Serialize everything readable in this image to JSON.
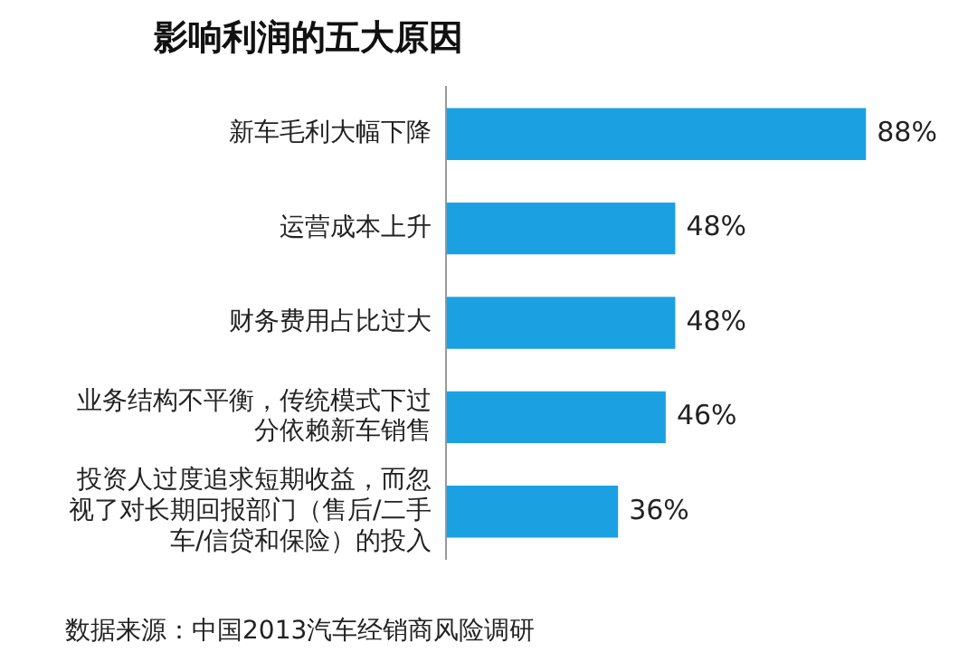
{
  "chart_data": {
    "type": "bar",
    "orientation": "horizontal",
    "title": "影响利润的五大原因",
    "categories": [
      "新车毛利大幅下降",
      "运营成本上升",
      "财务费用占比过大",
      "业务结构不平衡，传统模式下过分依赖新车销售",
      "投资人过度追求短期收益，而忽视了对长期回报部门（售后/二手车/信贷和保险）的投入"
    ],
    "values": [
      88,
      48,
      48,
      46,
      36
    ],
    "value_labels": [
      "88%",
      "48%",
      "48%",
      "46%",
      "36%"
    ],
    "color": "#1ba1e2",
    "legend": false,
    "annotations": [
      "数据来源：中国2013汽车经销商风险调研"
    ]
  }
}
